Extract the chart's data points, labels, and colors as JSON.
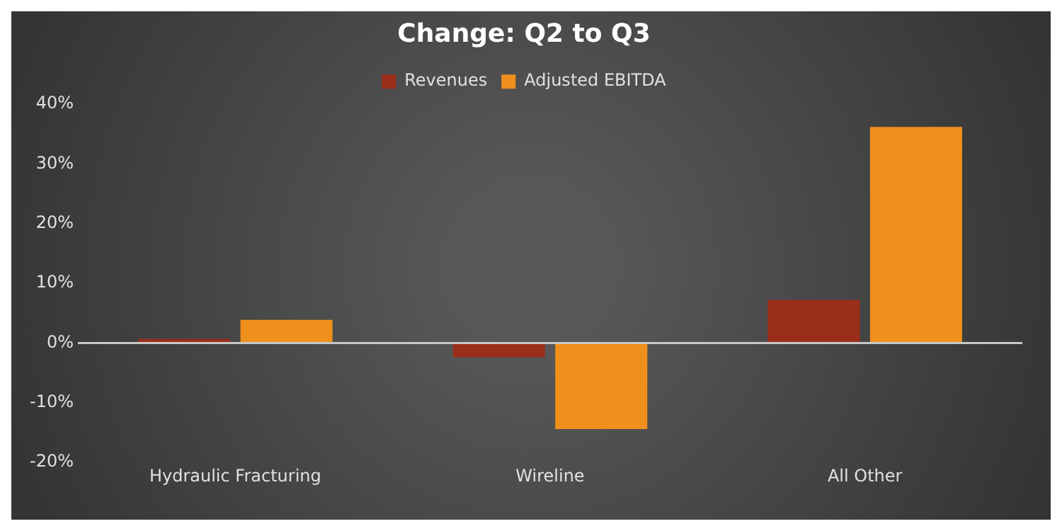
{
  "chart_data": {
    "type": "bar",
    "title": "Change: Q2 to Q3",
    "categories": [
      "Hydraulic Fracturing",
      "Wireline",
      "All Other"
    ],
    "series": [
      {
        "name": "Revenues",
        "color": "#9a2e1a",
        "values": [
          0.7,
          -2.4,
          7.2
        ]
      },
      {
        "name": "Adjusted EBITDA",
        "color": "#f0901c",
        "values": [
          3.9,
          -14.4,
          36.2
        ]
      }
    ],
    "ylim": [
      -20,
      40
    ],
    "yticks": [
      {
        "value": -20,
        "label": "-20%"
      },
      {
        "value": -10,
        "label": "-10%"
      },
      {
        "value": 0,
        "label": "0%"
      },
      {
        "value": 10,
        "label": "10%"
      },
      {
        "value": 20,
        "label": "20%"
      },
      {
        "value": 30,
        "label": "30%"
      },
      {
        "value": 40,
        "label": "40%"
      }
    ],
    "ref_lines": [
      {
        "axis": "y",
        "value": 0,
        "color": "#c8c8c8"
      }
    ],
    "grid": false,
    "legend": "top"
  }
}
